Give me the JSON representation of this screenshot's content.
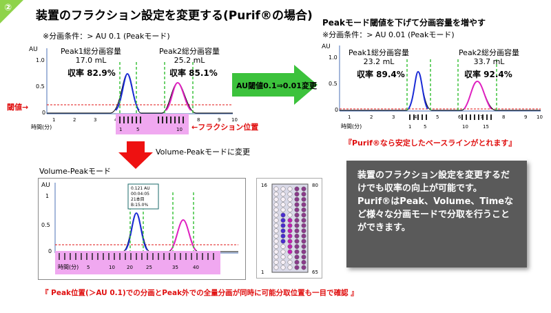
{
  "badge": "②",
  "title": "装置のフラクション設定を変更する(Purif®の場合)",
  "left_panel": {
    "condition": "※分画条件：> AU 0.1 (Peakモード)",
    "peak1": {
      "label": "Peak1総分画容量",
      "volume": "17.0 mL",
      "yield": "収率 82.9%"
    },
    "peak2": {
      "label": "Peak2総分画容量",
      "volume": "25.2 mL",
      "yield": "収率 85.1%"
    },
    "threshold_label": "閾値→",
    "fraction_label": "←フラクション位置",
    "axis_label": "時間(分)",
    "y_label": "AU"
  },
  "middle_arrow": "AU閾値0.1⇒0.01変更",
  "right_panel": {
    "title": "Peakモード閾値を下げて分画容量を増やす",
    "condition": "※分画条件：> AU 0.01 (Peakモード)",
    "peak1": {
      "label": "Peak1総分画容量",
      "volume": "23.2 mL",
      "yield": "収率 89.4%"
    },
    "peak2": {
      "label": "Peak2総分画容量",
      "volume": "33.7 mL",
      "yield": "収率 92.4%"
    },
    "axis_label": "時間(分)",
    "y_label": "AU",
    "note": "『Purif®なら安定したベースラインがとれます』"
  },
  "down_arrow_label": "Volume-Peakモードに変更",
  "bottom_panel": {
    "title": "Volume-Peakモード",
    "y_label": "AU",
    "tooltip": [
      "0.121 AU",
      "00:04:05",
      "21本目",
      "B:15.0%"
    ],
    "axis_label": "時間(分)",
    "note": "『 Peak位置(＞AU 0.1)での分画とPeak外での全量分画が同時に可能分取位置も一目で確認 』"
  },
  "rack": {
    "top_left": "16",
    "top_right": "80",
    "bottom_left": "1",
    "bottom_right": "65"
  },
  "info_box": {
    "line1": "装置のフラクション設定を変更するだけでも収率の向上が可能です。",
    "line2": "Purif®はPeak、Volume、Timeなど様々な分画モードで分取を行うことができます。"
  },
  "colors": {
    "badge": "#8fd34a",
    "peak1": "#1a2bd6",
    "peak2": "#e020c0",
    "threshold": "#e01010",
    "fraction": "#f0a8f0",
    "cut": "#3cc23c",
    "arrow_green": "#3cc23c",
    "arrow_red": "#ee1111"
  }
}
